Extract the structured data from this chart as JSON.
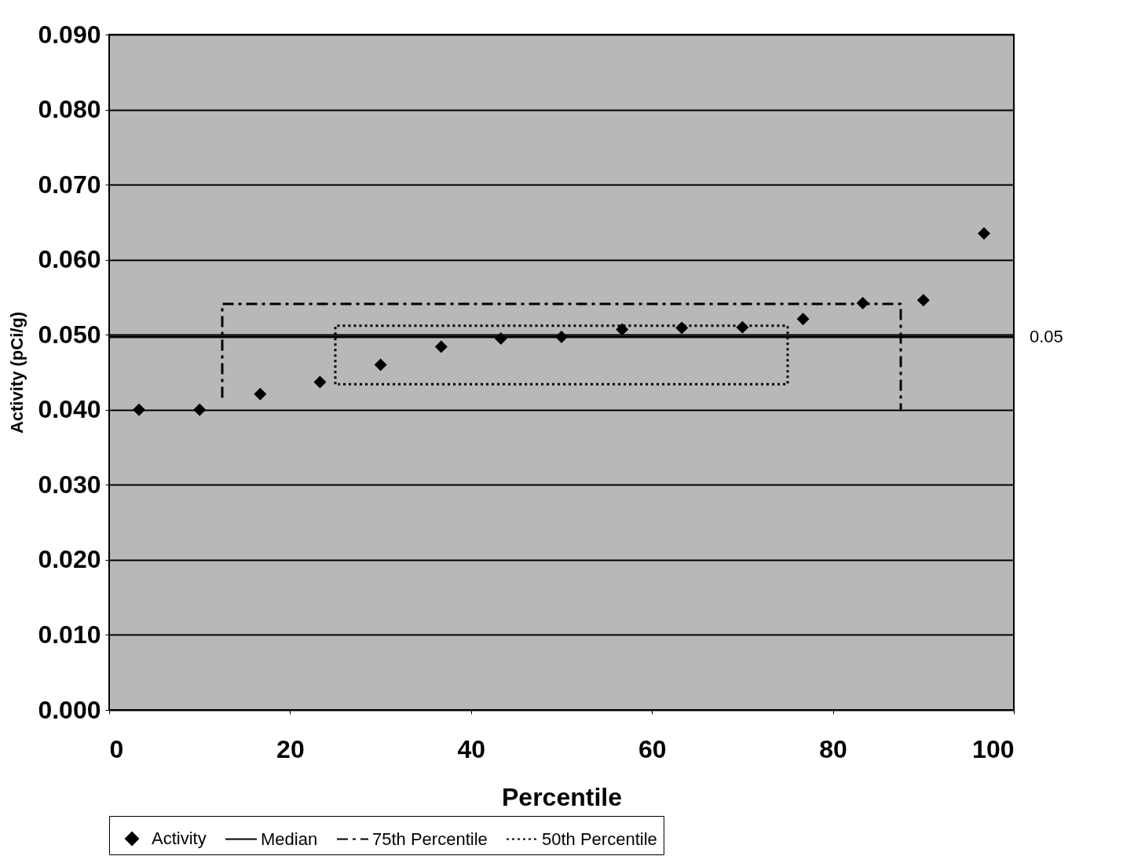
{
  "chart_data": {
    "type": "scatter",
    "xlabel": "Percentile",
    "ylabel": "Activity  (pCi/g)",
    "xlim": [
      0,
      100
    ],
    "xticks": [
      0,
      20,
      40,
      60,
      80,
      100
    ],
    "ylim": [
      0,
      0.09
    ],
    "yticks": [
      {
        "value": 0,
        "label": "0.000"
      },
      {
        "value": 0.01,
        "label": "0.010"
      },
      {
        "value": 0.02,
        "label": "0.020"
      },
      {
        "value": 0.03,
        "label": "0.030"
      },
      {
        "value": 0.04,
        "label": "0.040"
      },
      {
        "value": 0.05,
        "label": "0.050"
      },
      {
        "value": 0.06,
        "label": "0.060"
      },
      {
        "value": 0.07,
        "label": "0.070"
      },
      {
        "value": 0.08,
        "label": "0.080"
      },
      {
        "value": 0.09,
        "label": "0.090"
      }
    ],
    "grid": "y",
    "legend": "bottom",
    "x": [
      3.3,
      10,
      16.7,
      23.3,
      30,
      36.7,
      43.3,
      50,
      56.7,
      63.3,
      70,
      76.7,
      83.3,
      90,
      96.7
    ],
    "series": [
      {
        "name": "Activity",
        "marker": "diamond",
        "color": "#000000",
        "values": [
          0.04,
          0.04,
          0.0421,
          0.0437,
          0.046,
          0.0484,
          0.0495,
          0.0497,
          0.0507,
          0.0509,
          0.051,
          0.0521,
          0.0542,
          0.0546,
          0.0635
        ]
      },
      {
        "name": "Median",
        "type": "line",
        "color": "#000000",
        "line_style": "solid",
        "marker": "none",
        "x": [
          0,
          50,
          100
        ],
        "values": [
          0.0497,
          0.0497,
          0.0497
        ]
      },
      {
        "name": "75th Percentile",
        "type": "line",
        "color": "#000000",
        "line_style": "dashed",
        "marker": "none",
        "x": [
          12.5,
          12.5,
          87.5,
          87.5
        ],
        "values": [
          0.0416,
          0.0541,
          0.0541,
          0.04
        ]
      },
      {
        "name": "50th Percentile",
        "type": "line",
        "color": "#000000",
        "line_style": "dotted",
        "marker": "none",
        "x": [
          25,
          25,
          75,
          75,
          25.3
        ],
        "values": [
          0.0434,
          0.0512,
          0.0512,
          0.0434,
          0.0434
        ]
      }
    ],
    "annotations": [
      {
        "text": "0.05",
        "x": 100,
        "y": 0.0497
      }
    ]
  }
}
